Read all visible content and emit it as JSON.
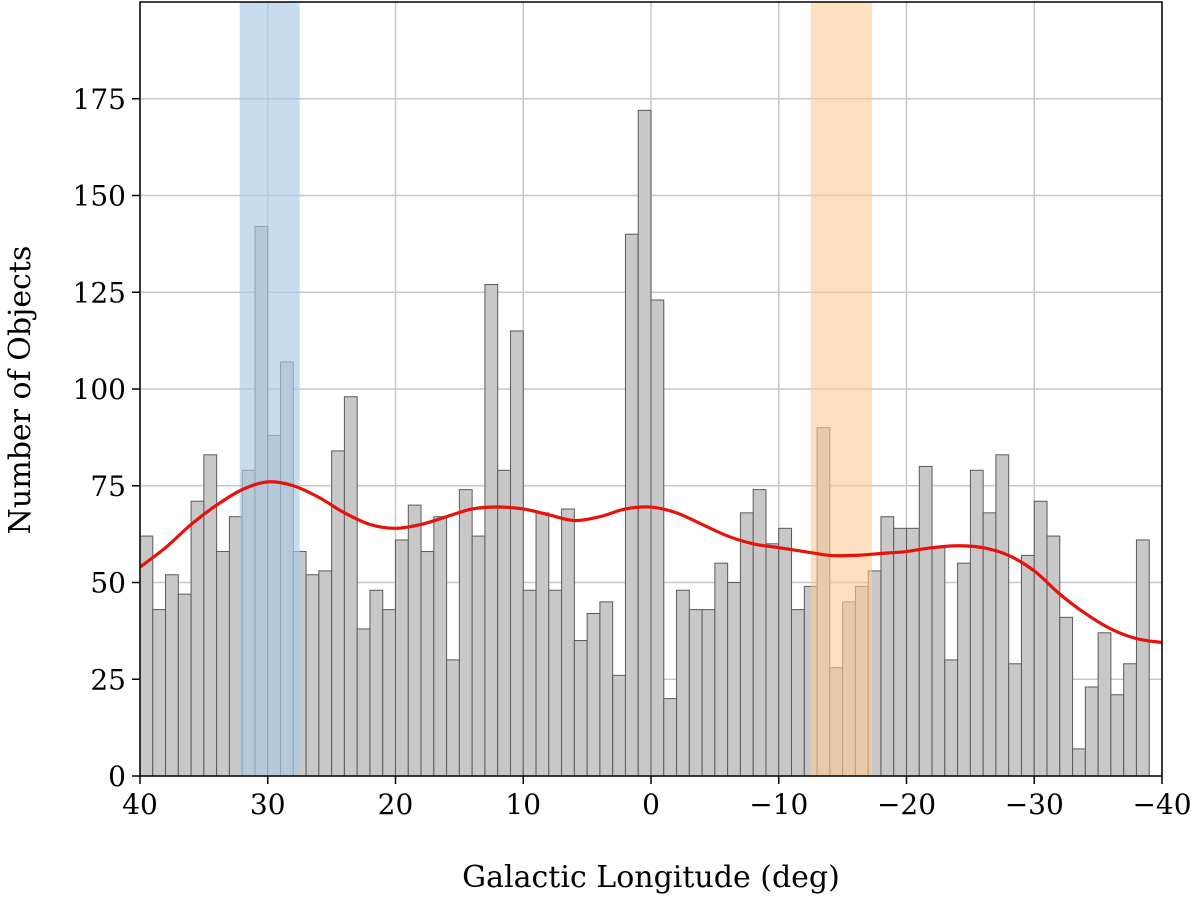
{
  "chart_data": {
    "type": "bar",
    "title": "",
    "xlabel": "Galactic Longitude (deg)",
    "ylabel": "Number of Objects",
    "xlim": [
      40,
      -40
    ],
    "ylim": [
      0,
      200
    ],
    "x_ticks": [
      40,
      30,
      20,
      10,
      0,
      -10,
      -20,
      -30,
      -40
    ],
    "x_tick_labels": [
      "40",
      "30",
      "20",
      "10",
      "0",
      "−10",
      "−20",
      "−30",
      "−40"
    ],
    "y_ticks": [
      0,
      25,
      50,
      75,
      100,
      125,
      150,
      175
    ],
    "y_tick_labels": [
      "0",
      "25",
      "50",
      "75",
      "100",
      "125",
      "150",
      "175"
    ],
    "grid": true,
    "bin_width": 1,
    "bin_start": 40,
    "values": [
      62,
      43,
      52,
      47,
      71,
      83,
      58,
      67,
      79,
      142,
      88,
      107,
      58,
      52,
      53,
      84,
      98,
      38,
      48,
      43,
      61,
      70,
      58,
      67,
      30,
      74,
      62,
      127,
      79,
      115,
      48,
      68,
      48,
      69,
      35,
      42,
      45,
      26,
      140,
      172,
      123,
      20,
      48,
      43,
      43,
      55,
      50,
      68,
      74,
      60,
      64,
      43,
      49,
      90,
      28,
      45,
      49,
      53,
      67,
      64,
      64,
      80,
      59,
      30,
      55,
      79,
      68,
      83,
      29,
      57,
      71,
      62,
      41,
      7,
      23,
      37,
      21,
      29,
      61
    ],
    "bar_color": "#c8c8c8",
    "bar_edge_color": "#5a5a5a",
    "series": [
      {
        "type": "line",
        "color": "#e8120c",
        "x": [
          40,
          38,
          36,
          34,
          32,
          30,
          28,
          26,
          24,
          22,
          20,
          18,
          16,
          14,
          12,
          10,
          8,
          6,
          4,
          2,
          0,
          -2,
          -4,
          -6,
          -8,
          -10,
          -12,
          -14,
          -16,
          -18,
          -20,
          -22,
          -24,
          -26,
          -28,
          -30,
          -32,
          -34,
          -36,
          -38,
          -40
        ],
        "y": [
          54,
          59,
          65,
          70,
          74,
          76,
          75,
          72,
          68,
          65,
          64,
          65,
          67,
          69,
          69.5,
          69,
          67.5,
          66,
          67,
          69,
          69.5,
          68,
          65,
          62,
          60,
          59,
          58,
          57,
          57,
          57.5,
          58,
          59,
          59.5,
          59,
          57,
          53,
          47,
          42,
          38,
          35.5,
          34.5
        ]
      }
    ],
    "highlight_bands": [
      {
        "x_range": [
          32.2,
          27.5
        ],
        "color": "#a9cbe3",
        "opacity": 0.65
      },
      {
        "x_range": [
          -12.5,
          -17.3
        ],
        "color": "#fdc996",
        "opacity": 0.6
      }
    ]
  }
}
